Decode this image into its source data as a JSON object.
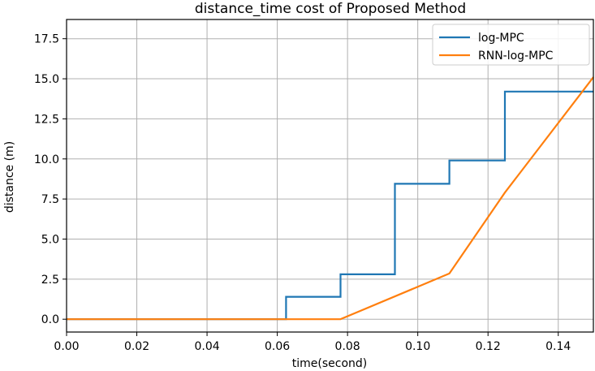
{
  "chart_data": {
    "type": "line",
    "title": "distance_time cost of Proposed Method",
    "xlabel": "time(second)",
    "ylabel": "distance (m)",
    "xlim": [
      0.0,
      0.15
    ],
    "ylim": [
      -0.8,
      18.7
    ],
    "xticks": [
      "0.00",
      "0.02",
      "0.04",
      "0.06",
      "0.08",
      "0.10",
      "0.12",
      "0.14"
    ],
    "xtick_values": [
      0.0,
      0.02,
      0.04,
      0.06,
      0.08,
      0.1,
      0.12,
      0.14
    ],
    "yticks": [
      "0.0",
      "2.5",
      "5.0",
      "7.5",
      "10.0",
      "12.5",
      "15.0",
      "17.5"
    ],
    "ytick_values": [
      0.0,
      2.5,
      5.0,
      7.5,
      10.0,
      12.5,
      15.0,
      17.5
    ],
    "grid": true,
    "legend_position": "top-right",
    "series": [
      {
        "name": "log-MPC",
        "color": "#1f77b4",
        "x": [
          0.0,
          0.0625,
          0.0625,
          0.078,
          0.078,
          0.0935,
          0.0935,
          0.109,
          0.109,
          0.1248,
          0.1248,
          0.15
        ],
        "y": [
          0.0,
          0.0,
          1.4,
          1.4,
          2.8,
          2.8,
          8.45,
          8.45,
          9.9,
          9.9,
          14.2,
          14.2
        ]
      },
      {
        "name": "RNN-log-MPC",
        "color": "#ff7f0e",
        "x": [
          0.0,
          0.078,
          0.109,
          0.1248,
          0.15
        ],
        "y": [
          0.0,
          0.0,
          2.85,
          7.9,
          15.1
        ]
      }
    ]
  }
}
